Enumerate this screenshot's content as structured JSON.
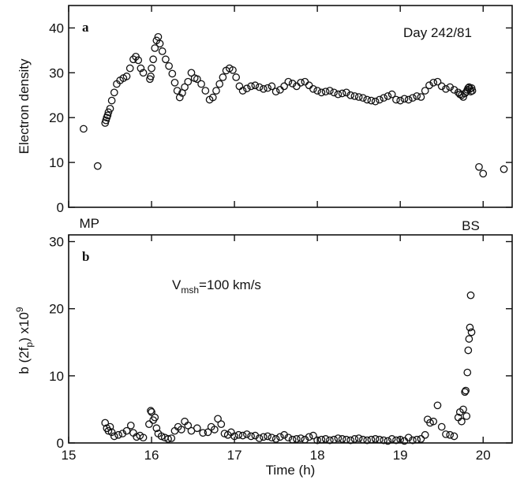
{
  "chart_data": [
    {
      "type": "scatter",
      "panel_label": "a",
      "annotation": "Day 242/81",
      "ylabel": "Electron density",
      "xlabel": "",
      "xlim": [
        15,
        20.35
      ],
      "ylim": [
        0,
        45
      ],
      "yticks": [
        0,
        10,
        20,
        30,
        40
      ],
      "xticks": [
        15,
        16,
        17,
        18,
        19,
        20
      ],
      "markers": [
        {
          "label": "MP",
          "x": 15.25
        },
        {
          "label": "BS",
          "x": 19.85
        }
      ],
      "grid": false,
      "x": [
        15.18,
        15.35,
        15.44,
        15.45,
        15.46,
        15.47,
        15.48,
        15.5,
        15.52,
        15.55,
        15.58,
        15.62,
        15.66,
        15.7,
        15.74,
        15.78,
        15.81,
        15.84,
        15.87,
        15.9,
        15.98,
        15.99,
        16.0,
        16.02,
        16.04,
        16.06,
        16.08,
        16.1,
        16.13,
        16.17,
        16.21,
        16.25,
        16.28,
        16.31,
        16.34,
        16.37,
        16.4,
        16.44,
        16.48,
        16.52,
        16.55,
        16.6,
        16.65,
        16.7,
        16.74,
        16.78,
        16.82,
        16.86,
        16.9,
        16.94,
        16.98,
        17.02,
        17.06,
        17.1,
        17.15,
        17.2,
        17.25,
        17.3,
        17.35,
        17.4,
        17.45,
        17.5,
        17.55,
        17.6,
        17.65,
        17.7,
        17.75,
        17.8,
        17.85,
        17.9,
        17.95,
        18.0,
        18.05,
        18.1,
        18.15,
        18.2,
        18.25,
        18.3,
        18.35,
        18.4,
        18.45,
        18.5,
        18.55,
        18.6,
        18.65,
        18.7,
        18.75,
        18.8,
        18.85,
        18.9,
        18.95,
        19.0,
        19.05,
        19.1,
        19.15,
        19.2,
        19.25,
        19.3,
        19.35,
        19.4,
        19.45,
        19.5,
        19.55,
        19.6,
        19.65,
        19.7,
        19.72,
        19.74,
        19.76,
        19.78,
        19.8,
        19.81,
        19.82,
        19.83,
        19.84,
        19.85,
        19.86,
        19.87,
        19.95,
        20.0,
        20.25
      ],
      "y": [
        17.5,
        9.2,
        18.8,
        19.4,
        20.0,
        20.5,
        21.2,
        22.0,
        23.8,
        25.6,
        27.5,
        28.3,
        28.8,
        29.2,
        31.0,
        33.0,
        33.6,
        32.8,
        31.0,
        30.0,
        28.6,
        29.2,
        31.0,
        33.0,
        35.5,
        37.2,
        38.0,
        36.5,
        34.8,
        33.0,
        31.5,
        29.8,
        27.8,
        26.0,
        24.5,
        25.5,
        26.8,
        28.0,
        30.0,
        28.8,
        28.6,
        27.5,
        26.0,
        24.0,
        24.5,
        26.0,
        27.5,
        29.0,
        30.5,
        31.0,
        30.6,
        29.0,
        27.0,
        26.0,
        26.5,
        27.0,
        27.2,
        26.8,
        26.4,
        26.6,
        27.0,
        25.8,
        26.2,
        27.0,
        28.0,
        27.6,
        27.0,
        27.8,
        28.0,
        27.2,
        26.4,
        26.0,
        25.6,
        25.8,
        26.0,
        25.6,
        25.2,
        25.4,
        25.6,
        25.0,
        24.8,
        24.6,
        24.4,
        24.0,
        23.8,
        23.6,
        24.0,
        24.4,
        24.8,
        25.2,
        24.0,
        23.8,
        24.2,
        24.0,
        24.4,
        24.8,
        24.6,
        26.0,
        27.2,
        27.8,
        28.0,
        27.0,
        26.4,
        26.8,
        26.2,
        25.6,
        25.2,
        25.0,
        24.6,
        25.4,
        25.8,
        26.2,
        26.6,
        26.8,
        26.4,
        25.8,
        26.6,
        26.0,
        9.0,
        7.5,
        8.5
      ]
    },
    {
      "type": "scatter",
      "panel_label": "b",
      "annotation": "V",
      "annotation_sub": "msh",
      "annotation_rest": "=100 km/s",
      "ylabel": "b (2f",
      "ylabel_sub": "p",
      "ylabel_rest": ") x10",
      "ylabel_sup": "9",
      "xlabel": "Time (h)",
      "xlim": [
        15,
        20.35
      ],
      "ylim": [
        0,
        31
      ],
      "yticks": [
        0,
        10,
        20,
        30
      ],
      "xticks": [
        15,
        16,
        17,
        18,
        19,
        20
      ],
      "grid": false,
      "x": [
        15.44,
        15.46,
        15.48,
        15.5,
        15.52,
        15.55,
        15.6,
        15.65,
        15.7,
        15.75,
        15.78,
        15.82,
        15.86,
        15.9,
        15.97,
        15.99,
        16.0,
        16.02,
        16.04,
        16.06,
        16.08,
        16.12,
        16.16,
        16.2,
        16.24,
        16.28,
        16.32,
        16.36,
        16.4,
        16.44,
        16.48,
        16.55,
        16.62,
        16.68,
        16.72,
        16.76,
        16.8,
        16.84,
        16.88,
        16.92,
        16.96,
        17.0,
        17.05,
        17.1,
        17.15,
        17.2,
        17.25,
        17.3,
        17.35,
        17.4,
        17.45,
        17.5,
        17.55,
        17.6,
        17.65,
        17.7,
        17.75,
        17.8,
        17.85,
        17.9,
        17.95,
        18.0,
        18.05,
        18.1,
        18.15,
        18.2,
        18.25,
        18.3,
        18.35,
        18.4,
        18.45,
        18.5,
        18.55,
        18.6,
        18.65,
        18.7,
        18.75,
        18.8,
        18.85,
        18.9,
        18.95,
        19.0,
        19.05,
        19.1,
        19.15,
        19.2,
        19.25,
        19.3,
        19.33,
        19.36,
        19.4,
        19.45,
        19.5,
        19.55,
        19.6,
        19.65,
        19.7,
        19.72,
        19.74,
        19.76,
        19.78,
        19.79,
        19.8,
        19.81,
        19.82,
        19.83,
        19.84,
        19.85,
        19.86
      ],
      "y": [
        3.0,
        2.2,
        1.8,
        2.4,
        1.6,
        1.0,
        1.2,
        1.4,
        1.8,
        2.6,
        1.5,
        0.9,
        1.1,
        0.8,
        2.8,
        4.8,
        4.6,
        3.4,
        3.8,
        2.2,
        1.4,
        1.0,
        0.8,
        0.6,
        0.7,
        1.8,
        2.4,
        2.0,
        3.2,
        2.6,
        1.8,
        2.2,
        1.5,
        1.6,
        2.4,
        2.0,
        3.6,
        2.8,
        1.4,
        1.2,
        1.6,
        1.0,
        1.2,
        1.1,
        1.3,
        1.0,
        1.1,
        0.7,
        0.9,
        1.0,
        0.8,
        0.6,
        0.9,
        1.2,
        0.8,
        0.5,
        0.6,
        0.7,
        0.5,
        0.9,
        1.1,
        0.4,
        0.5,
        0.6,
        0.4,
        0.5,
        0.7,
        0.6,
        0.5,
        0.4,
        0.6,
        0.7,
        0.5,
        0.4,
        0.5,
        0.6,
        0.5,
        0.4,
        0.3,
        0.6,
        0.4,
        0.5,
        0.3,
        0.8,
        0.4,
        0.5,
        0.6,
        1.2,
        3.5,
        3.0,
        3.2,
        5.6,
        2.4,
        1.3,
        1.2,
        1.0,
        3.8,
        4.6,
        3.2,
        5.0,
        7.6,
        7.8,
        4.0,
        10.5,
        13.8,
        15.5,
        17.2,
        22.0,
        16.5
      ]
    }
  ]
}
